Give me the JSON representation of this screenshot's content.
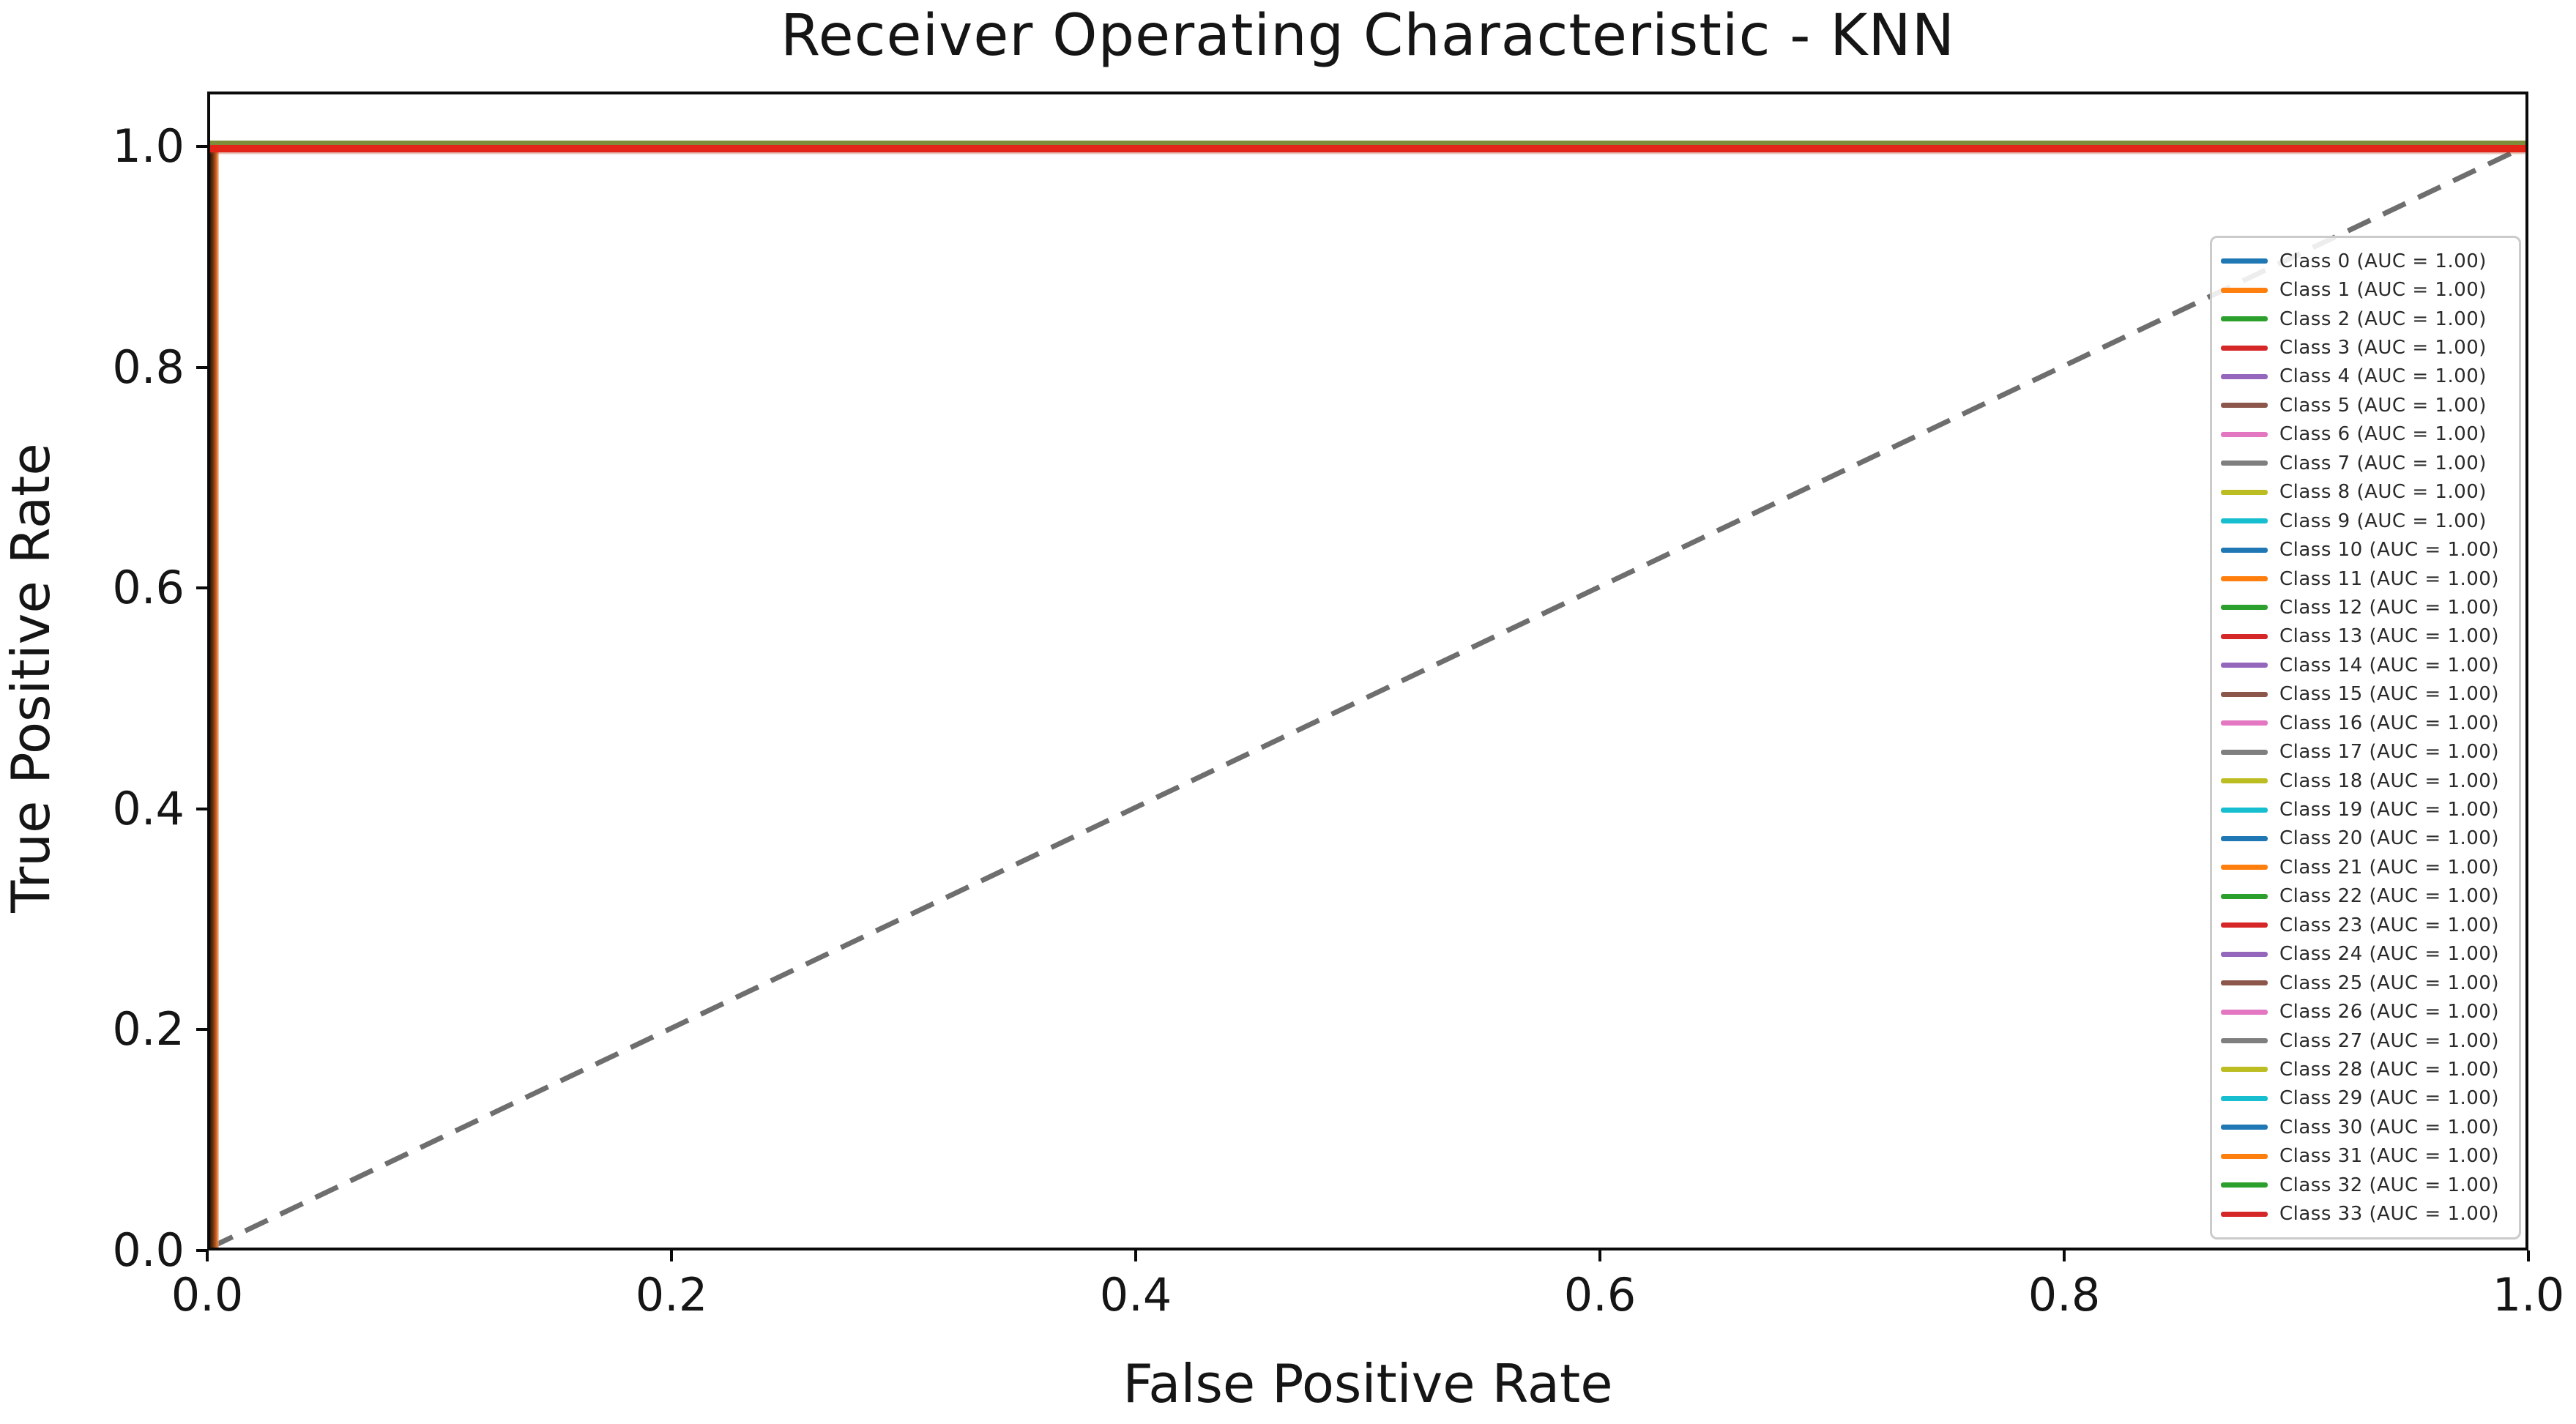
{
  "chart_data": {
    "type": "line",
    "title": "Receiver Operating Characteristic - KNN",
    "xlabel": "False Positive Rate",
    "ylabel": "True Positive Rate",
    "xlim": [
      0.0,
      1.0
    ],
    "ylim": [
      0.0,
      1.05
    ],
    "x_ticks": [
      "0.0",
      "0.2",
      "0.4",
      "0.6",
      "0.8",
      "1.0"
    ],
    "y_ticks": [
      "0.0",
      "0.2",
      "0.4",
      "0.6",
      "0.8",
      "1.0"
    ],
    "grid": false,
    "legend_position": "lower right",
    "reference_line": {
      "style": "dashed",
      "color": "#6e6e6e",
      "x": [
        0.0,
        1.0
      ],
      "y": [
        0.0,
        1.0
      ]
    },
    "series": [
      {
        "label": "Class 0 (AUC = 1.00)",
        "color": "#1f77b4",
        "auc": 1.0,
        "x": [
          0.0,
          0.0,
          1.0
        ],
        "y": [
          0.0,
          1.0,
          1.0
        ]
      },
      {
        "label": "Class 1 (AUC = 1.00)",
        "color": "#ff7f0e",
        "auc": 1.0,
        "x": [
          0.0,
          0.0,
          1.0
        ],
        "y": [
          0.0,
          1.0,
          1.0
        ]
      },
      {
        "label": "Class 2 (AUC = 1.00)",
        "color": "#2ca02c",
        "auc": 1.0,
        "x": [
          0.0,
          0.0,
          1.0
        ],
        "y": [
          0.0,
          1.0,
          1.0
        ]
      },
      {
        "label": "Class 3 (AUC = 1.00)",
        "color": "#d62728",
        "auc": 1.0,
        "x": [
          0.0,
          0.0,
          1.0
        ],
        "y": [
          0.0,
          1.0,
          1.0
        ]
      },
      {
        "label": "Class 4 (AUC = 1.00)",
        "color": "#9467bd",
        "auc": 1.0,
        "x": [
          0.0,
          0.0,
          1.0
        ],
        "y": [
          0.0,
          1.0,
          1.0
        ]
      },
      {
        "label": "Class 5 (AUC = 1.00)",
        "color": "#8c564b",
        "auc": 1.0,
        "x": [
          0.0,
          0.0,
          1.0
        ],
        "y": [
          0.0,
          1.0,
          1.0
        ]
      },
      {
        "label": "Class 6 (AUC = 1.00)",
        "color": "#e377c2",
        "auc": 1.0,
        "x": [
          0.0,
          0.0,
          1.0
        ],
        "y": [
          0.0,
          1.0,
          1.0
        ]
      },
      {
        "label": "Class 7 (AUC = 1.00)",
        "color": "#7f7f7f",
        "auc": 1.0,
        "x": [
          0.0,
          0.0,
          1.0
        ],
        "y": [
          0.0,
          1.0,
          1.0
        ]
      },
      {
        "label": "Class 8 (AUC = 1.00)",
        "color": "#bcbd22",
        "auc": 1.0,
        "x": [
          0.0,
          0.0,
          1.0
        ],
        "y": [
          0.0,
          1.0,
          1.0
        ]
      },
      {
        "label": "Class 9 (AUC = 1.00)",
        "color": "#17becf",
        "auc": 1.0,
        "x": [
          0.0,
          0.0,
          1.0
        ],
        "y": [
          0.0,
          1.0,
          1.0
        ]
      },
      {
        "label": "Class 10 (AUC = 1.00)",
        "color": "#1f77b4",
        "auc": 1.0,
        "x": [
          0.0,
          0.0,
          1.0
        ],
        "y": [
          0.0,
          1.0,
          1.0
        ]
      },
      {
        "label": "Class 11 (AUC = 1.00)",
        "color": "#ff7f0e",
        "auc": 1.0,
        "x": [
          0.0,
          0.0,
          1.0
        ],
        "y": [
          0.0,
          1.0,
          1.0
        ]
      },
      {
        "label": "Class 12 (AUC = 1.00)",
        "color": "#2ca02c",
        "auc": 1.0,
        "x": [
          0.0,
          0.0,
          1.0
        ],
        "y": [
          0.0,
          1.0,
          1.0
        ]
      },
      {
        "label": "Class 13 (AUC = 1.00)",
        "color": "#d62728",
        "auc": 1.0,
        "x": [
          0.0,
          0.0,
          1.0
        ],
        "y": [
          0.0,
          1.0,
          1.0
        ]
      },
      {
        "label": "Class 14 (AUC = 1.00)",
        "color": "#9467bd",
        "auc": 1.0,
        "x": [
          0.0,
          0.0,
          1.0
        ],
        "y": [
          0.0,
          1.0,
          1.0
        ]
      },
      {
        "label": "Class 15 (AUC = 1.00)",
        "color": "#8c564b",
        "auc": 1.0,
        "x": [
          0.0,
          0.0,
          1.0
        ],
        "y": [
          0.0,
          1.0,
          1.0
        ]
      },
      {
        "label": "Class 16 (AUC = 1.00)",
        "color": "#e377c2",
        "auc": 1.0,
        "x": [
          0.0,
          0.0,
          1.0
        ],
        "y": [
          0.0,
          1.0,
          1.0
        ]
      },
      {
        "label": "Class 17 (AUC = 1.00)",
        "color": "#7f7f7f",
        "auc": 1.0,
        "x": [
          0.0,
          0.0,
          1.0
        ],
        "y": [
          0.0,
          1.0,
          1.0
        ]
      },
      {
        "label": "Class 18 (AUC = 1.00)",
        "color": "#bcbd22",
        "auc": 1.0,
        "x": [
          0.0,
          0.0,
          1.0
        ],
        "y": [
          0.0,
          1.0,
          1.0
        ]
      },
      {
        "label": "Class 19 (AUC = 1.00)",
        "color": "#17becf",
        "auc": 1.0,
        "x": [
          0.0,
          0.0,
          1.0
        ],
        "y": [
          0.0,
          1.0,
          1.0
        ]
      },
      {
        "label": "Class 20 (AUC = 1.00)",
        "color": "#1f77b4",
        "auc": 1.0,
        "x": [
          0.0,
          0.0,
          1.0
        ],
        "y": [
          0.0,
          1.0,
          1.0
        ]
      },
      {
        "label": "Class 21 (AUC = 1.00)",
        "color": "#ff7f0e",
        "auc": 1.0,
        "x": [
          0.0,
          0.0,
          1.0
        ],
        "y": [
          0.0,
          1.0,
          1.0
        ]
      },
      {
        "label": "Class 22 (AUC = 1.00)",
        "color": "#2ca02c",
        "auc": 1.0,
        "x": [
          0.0,
          0.0,
          1.0
        ],
        "y": [
          0.0,
          1.0,
          1.0
        ]
      },
      {
        "label": "Class 23 (AUC = 1.00)",
        "color": "#d62728",
        "auc": 1.0,
        "x": [
          0.0,
          0.0,
          1.0
        ],
        "y": [
          0.0,
          1.0,
          1.0
        ]
      },
      {
        "label": "Class 24 (AUC = 1.00)",
        "color": "#9467bd",
        "auc": 1.0,
        "x": [
          0.0,
          0.0,
          1.0
        ],
        "y": [
          0.0,
          1.0,
          1.0
        ]
      },
      {
        "label": "Class 25 (AUC = 1.00)",
        "color": "#8c564b",
        "auc": 1.0,
        "x": [
          0.0,
          0.0,
          1.0
        ],
        "y": [
          0.0,
          1.0,
          1.0
        ]
      },
      {
        "label": "Class 26 (AUC = 1.00)",
        "color": "#e377c2",
        "auc": 1.0,
        "x": [
          0.0,
          0.0,
          1.0
        ],
        "y": [
          0.0,
          1.0,
          1.0
        ]
      },
      {
        "label": "Class 27 (AUC = 1.00)",
        "color": "#7f7f7f",
        "auc": 1.0,
        "x": [
          0.0,
          0.0,
          1.0
        ],
        "y": [
          0.0,
          1.0,
          1.0
        ]
      },
      {
        "label": "Class 28 (AUC = 1.00)",
        "color": "#bcbd22",
        "auc": 1.0,
        "x": [
          0.0,
          0.0,
          1.0
        ],
        "y": [
          0.0,
          1.0,
          1.0
        ]
      },
      {
        "label": "Class 29 (AUC = 1.00)",
        "color": "#17becf",
        "auc": 1.0,
        "x": [
          0.0,
          0.0,
          1.0
        ],
        "y": [
          0.0,
          1.0,
          1.0
        ]
      },
      {
        "label": "Class 30 (AUC = 1.00)",
        "color": "#1f77b4",
        "auc": 1.0,
        "x": [
          0.0,
          0.0,
          1.0
        ],
        "y": [
          0.0,
          1.0,
          1.0
        ]
      },
      {
        "label": "Class 31 (AUC = 1.00)",
        "color": "#ff7f0e",
        "auc": 1.0,
        "x": [
          0.0,
          0.0,
          1.0
        ],
        "y": [
          0.0,
          1.0,
          1.0
        ]
      },
      {
        "label": "Class 32 (AUC = 1.00)",
        "color": "#2ca02c",
        "auc": 1.0,
        "x": [
          0.0,
          0.0,
          1.0
        ],
        "y": [
          0.0,
          1.0,
          1.0
        ]
      },
      {
        "label": "Class 33 (AUC = 1.00)",
        "color": "#d62728",
        "auc": 1.0,
        "x": [
          0.0,
          0.0,
          1.0
        ],
        "y": [
          0.0,
          1.0,
          1.0
        ]
      }
    ],
    "overlap_render_colors": {
      "top_line_upper": "#7f8c3a",
      "top_line_lower": "#e32419",
      "left_line_gradient": [
        "#2e170a",
        "#a84d1c",
        "#e0762f"
      ]
    }
  }
}
